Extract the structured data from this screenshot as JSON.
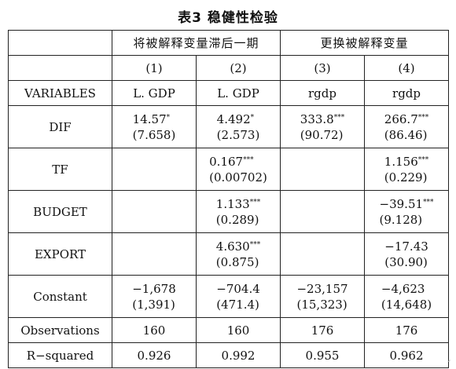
{
  "title": "表3 稳健性检验",
  "groups": [
    "将被解释变量滞后一期",
    "更换被解释变量"
  ],
  "column_numbers": [
    "(1)",
    "(2)",
    "(3)",
    "(4)"
  ],
  "variables_row": {
    "label": "VARIABLES",
    "cells": [
      "L. GDP",
      "L. GDP",
      "rgdp",
      "rgdp"
    ]
  },
  "rows": [
    {
      "name": "DIF",
      "cells": [
        {
          "coef": "14.57",
          "stars": "*",
          "se": "(7.658)"
        },
        {
          "coef": "4.492",
          "stars": "*",
          "se": "(2.573)"
        },
        {
          "coef": "333.8",
          "stars": "***",
          "se": "(90.72)"
        },
        {
          "coef": "266.7",
          "stars": "***",
          "se": "(86.46)"
        }
      ]
    },
    {
      "name": "TF",
      "cells": [
        {
          "coef": "",
          "stars": "",
          "se": ""
        },
        {
          "coef": "0.167",
          "stars": "***",
          "se": "(0.00702)"
        },
        {
          "coef": "",
          "stars": "",
          "se": ""
        },
        {
          "coef": "1.156",
          "stars": "***",
          "se": "(0.229)"
        }
      ]
    },
    {
      "name": "BUDGET",
      "cells": [
        {
          "coef": "",
          "stars": "",
          "se": ""
        },
        {
          "coef": "1.133",
          "stars": "***",
          "se": "(0.289)"
        },
        {
          "coef": "",
          "stars": "",
          "se": ""
        },
        {
          "coef": "−39.51",
          "stars": "***",
          "se": "(9.128)"
        }
      ]
    },
    {
      "name": "EXPORT",
      "cells": [
        {
          "coef": "",
          "stars": "",
          "se": ""
        },
        {
          "coef": "4.630",
          "stars": "***",
          "se": "(0.875)"
        },
        {
          "coef": "",
          "stars": "",
          "se": ""
        },
        {
          "coef": "−17.43",
          "stars": "",
          "se": "(30.90)"
        }
      ]
    },
    {
      "name": "Constant",
      "cells": [
        {
          "coef": "−1,678",
          "stars": "",
          "se": "(1,391)"
        },
        {
          "coef": "−704.4",
          "stars": "",
          "se": "(471.4)"
        },
        {
          "coef": "−23,157",
          "stars": "",
          "se": "(15,323)"
        },
        {
          "coef": "−4,623",
          "stars": "",
          "se": "(14,648)"
        }
      ]
    }
  ],
  "stats": [
    {
      "name": "Observations",
      "cells": [
        "160",
        "160",
        "176",
        "176"
      ]
    },
    {
      "name": "R−squared",
      "cells": [
        "0.926",
        "0.992",
        "0.955",
        "0.962"
      ]
    }
  ]
}
